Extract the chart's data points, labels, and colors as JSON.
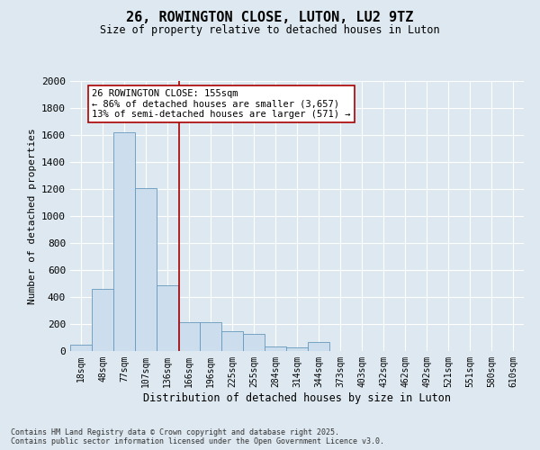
{
  "title_line1": "26, ROWINGTON CLOSE, LUTON, LU2 9TZ",
  "title_line2": "Size of property relative to detached houses in Luton",
  "xlabel": "Distribution of detached houses by size in Luton",
  "ylabel": "Number of detached properties",
  "categories": [
    "18sqm",
    "48sqm",
    "77sqm",
    "107sqm",
    "136sqm",
    "166sqm",
    "196sqm",
    "225sqm",
    "255sqm",
    "284sqm",
    "314sqm",
    "344sqm",
    "373sqm",
    "403sqm",
    "432sqm",
    "462sqm",
    "492sqm",
    "521sqm",
    "551sqm",
    "580sqm",
    "610sqm"
  ],
  "values": [
    50,
    460,
    1620,
    1210,
    490,
    215,
    215,
    150,
    130,
    35,
    25,
    70,
    0,
    0,
    0,
    0,
    0,
    0,
    0,
    0,
    0
  ],
  "bar_color": "#ccdded",
  "bar_edge_color": "#6699bb",
  "vline_x_index": 4.55,
  "vline_color": "#aa0000",
  "annotation_line1": "26 ROWINGTON CLOSE: 155sqm",
  "annotation_line2": "← 86% of detached houses are smaller (3,657)",
  "annotation_line3": "13% of semi-detached houses are larger (571) →",
  "annotation_box_color": "#ffffff",
  "annotation_box_edge": "#aa0000",
  "ylim": [
    0,
    2000
  ],
  "yticks": [
    0,
    200,
    400,
    600,
    800,
    1000,
    1200,
    1400,
    1600,
    1800,
    2000
  ],
  "background_color": "#dde8f0",
  "plot_background": "#dde8f0",
  "grid_color": "#ffffff",
  "footer_line1": "Contains HM Land Registry data © Crown copyright and database right 2025.",
  "footer_line2": "Contains public sector information licensed under the Open Government Licence v3.0."
}
